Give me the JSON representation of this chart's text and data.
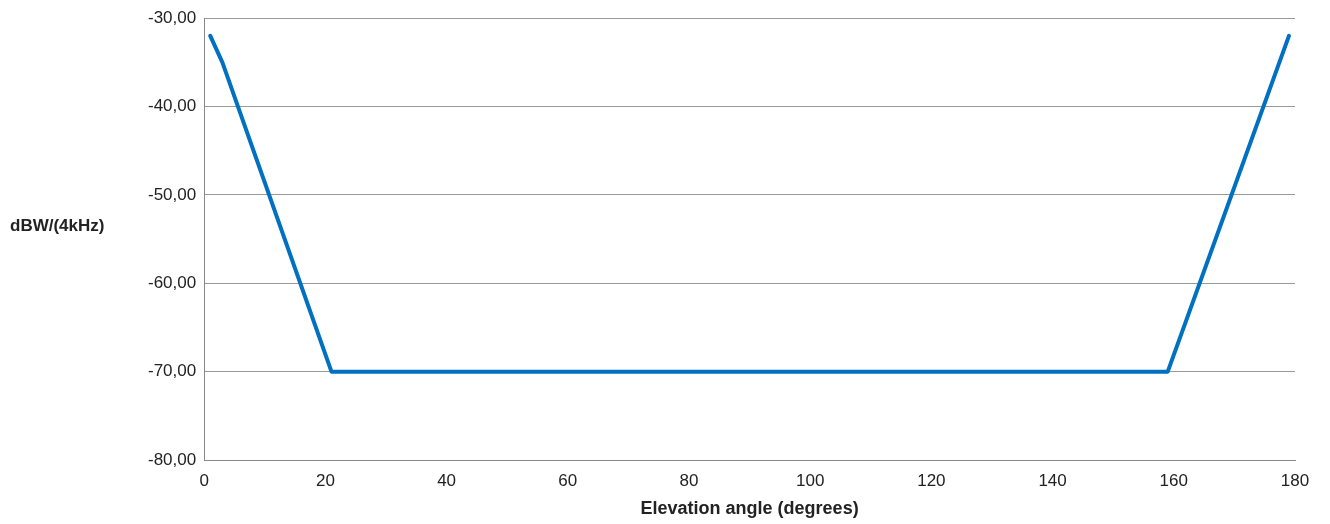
{
  "chart_data": {
    "type": "line",
    "xlabel": "Elevation angle (degrees)",
    "ylabel": "dBW/(4kHz)",
    "x": [
      1,
      3,
      21,
      159,
      179
    ],
    "series": [
      {
        "color": "#0070c0",
        "values": [
          -32,
          -35,
          -70,
          -70,
          -32
        ]
      }
    ],
    "xlim": [
      0,
      180
    ],
    "xticks": [
      0,
      20,
      40,
      60,
      80,
      100,
      120,
      140,
      160,
      180
    ],
    "ylim": [
      -80,
      -30
    ],
    "yticks": [
      {
        "value": -80,
        "label": "-80,00"
      },
      {
        "value": -70,
        "label": "-70,00"
      },
      {
        "value": -60,
        "label": "-60,00"
      },
      {
        "value": -50,
        "label": "-50,00"
      },
      {
        "value": -40,
        "label": "-40,00"
      },
      {
        "value": -30,
        "label": "-30,00"
      }
    ],
    "grid": "y",
    "legend": false,
    "marker": "none",
    "line_style": "solid"
  }
}
